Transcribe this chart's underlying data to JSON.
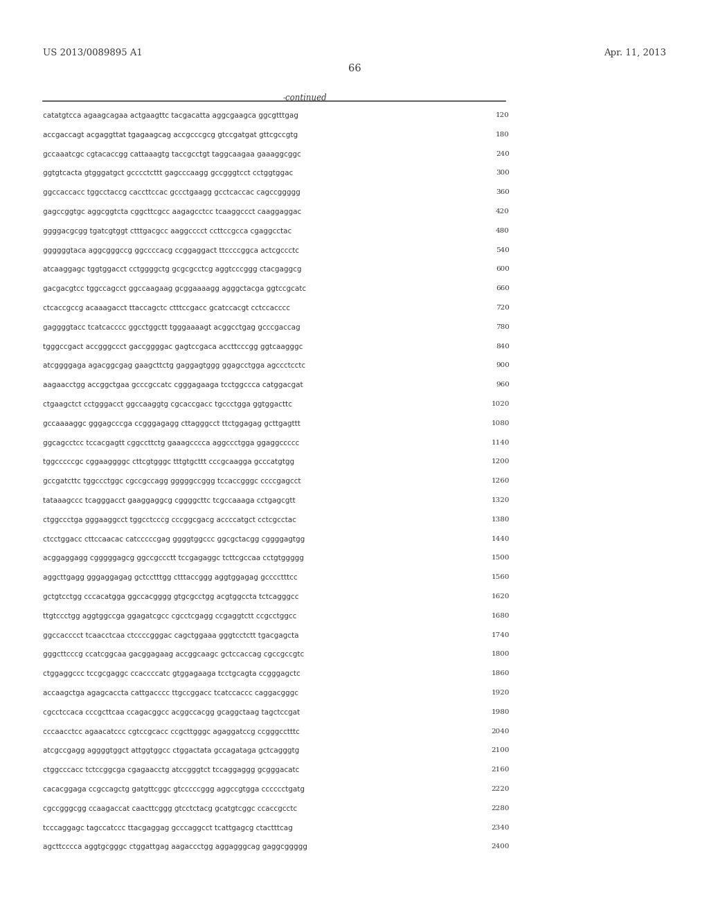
{
  "header_left": "US 2013/0089895 A1",
  "header_right": "Apr. 11, 2013",
  "page_number": "66",
  "continued_label": "-continued",
  "background_color": "#ffffff",
  "text_color": "#3a3a3a",
  "seq_font_size": 7.5,
  "header_font_size": 9.5,
  "page_num_font_size": 10.5,
  "continued_font_size": 8.5,
  "sequences": [
    {
      "seq": "catatgtcca agaagcagaa actgaagttc tacgacatta aggcgaagca ggcgtttgag",
      "num": "120"
    },
    {
      "seq": "accgaccagt acgaggttat tgagaagcag accgcccgcg gtccgatgat gttcgccgtg",
      "num": "180"
    },
    {
      "seq": "gccaaatcgc cgtacaccgg cattaaagtg taccgcctgt taggcaagaa gaaaggcggc",
      "num": "240"
    },
    {
      "seq": "ggtgtcacta gtgggatgct gcccctcttt gagcccaagg gccgggtcct cctggtggac",
      "num": "300"
    },
    {
      "seq": "ggccaccacc tggcctaccg caccttccac gccctgaagg gcctcaccac cagccggggg",
      "num": "360"
    },
    {
      "seq": "gagccggtgc aggcggtcta cggcttcgcc aagagcctcc tcaaggccct caaggaggac",
      "num": "420"
    },
    {
      "seq": "ggggacgcgg tgatcgtggt ctttgacgcc aaggcccct ccttccgcca cgaggcctac",
      "num": "480"
    },
    {
      "seq": "ggggggtaca aggcgggccg ggccccacg ccggaggact ttccccggca actcgccctc",
      "num": "540"
    },
    {
      "seq": "atcaaggagc tggtggacct cctggggctg gcgcgcctcg aggtcccggg ctacgaggcg",
      "num": "600"
    },
    {
      "seq": "gacgacgtcc tggccagcct ggccaagaag gcggaaaagg agggctacga ggtccgcatc",
      "num": "660"
    },
    {
      "seq": "ctcaccgccg acaaagacct ttaccagctc ctttccgacc gcatccacgt cctccacccc",
      "num": "720"
    },
    {
      "seq": "gaggggtacc tcatcacccc ggcctggctt tgggaaaagt acggcctgag gcccgaccag",
      "num": "780"
    },
    {
      "seq": "tgggccgact accgggccct gaccggggac gagtccgaca accttcccgg ggtcaagggc",
      "num": "840"
    },
    {
      "seq": "atcggggaga agacggcgag gaagcttctg gaggagtggg ggagcctgga agccctcctc",
      "num": "900"
    },
    {
      "seq": "aagaacctgg accggctgaa gcccgccatc cgggagaaga tcctggccca catggacgat",
      "num": "960"
    },
    {
      "seq": "ctgaagctct cctgggacct ggccaaggtg cgcaccgacc tgccctgga ggtggacttc",
      "num": "1020"
    },
    {
      "seq": "gccaaaaggc gggagcccga ccgggagagg cttagggcct ttctggagag gcttgagttt",
      "num": "1080"
    },
    {
      "seq": "ggcagcctcc tccacgagtt cggccttctg gaaagcccca aggccctgga ggaggccccc",
      "num": "1140"
    },
    {
      "seq": "tggcccccgc cggaaggggc cttcgtgggc tttgtgcttt cccgcaagga gcccatgtgg",
      "num": "1200"
    },
    {
      "seq": "gccgatcttc tggccctggc cgccgccagg gggggccggg tccaccgggc ccccgagcct",
      "num": "1260"
    },
    {
      "seq": "tataaagccc tcagggacct gaaggaggcg cggggcttc tcgccaaaga cctgagcgtt",
      "num": "1320"
    },
    {
      "seq": "ctggccctga gggaaggcct tggcctcccg cccggcgacg accccatgct cctcgcctac",
      "num": "1380"
    },
    {
      "seq": "ctcctggacc cttccaacac catcccccgag ggggtggccc ggcgctacgg cggggagtgg",
      "num": "1440"
    },
    {
      "seq": "acggaggagg cgggggagcg ggccgccctt tccgagaggc tcttcgccaa cctgtggggg",
      "num": "1500"
    },
    {
      "seq": "aggcttgagg gggaggagag gctcctttgg ctttaccggg aggtggagag gcccctttcc",
      "num": "1560"
    },
    {
      "seq": "gctgtcctgg cccacatgga ggccacgggg gtgcgcctgg acgtggccta tctcagggcc",
      "num": "1620"
    },
    {
      "seq": "ttgtccctgg aggtggccga ggagatcgcc cgcctcgagg ccgaggtctt ccgcctggcc",
      "num": "1680"
    },
    {
      "seq": "ggccacccct tcaacctcaa ctccccgggac cagctggaaa gggtcctctt tgacgagcta",
      "num": "1740"
    },
    {
      "seq": "gggcttcccg ccatcggcaa gacggagaag accggcaagc gctccaccag cgccgccgtc",
      "num": "1800"
    },
    {
      "seq": "ctggaggccc tccgcgaggc ccaccccatc gtggagaaga tcctgcagta ccgggagctc",
      "num": "1860"
    },
    {
      "seq": "accaagctga agagcaccta cattgacccc ttgccggacc tcatccaccc caggacgggc",
      "num": "1920"
    },
    {
      "seq": "cgcctccaca cccgcttcaa ccagacggcc acggccacgg gcaggctaag tagctccgat",
      "num": "1980"
    },
    {
      "seq": "cccaacctcc agaacatccc cgtccgcacc ccgcttgggc agaggatccg ccgggcctttc",
      "num": "2040"
    },
    {
      "seq": "atcgccgagg aggggtggct attggtggcc ctggactata gccagataga gctcagggtg",
      "num": "2100"
    },
    {
      "seq": "ctggcccacc tctccggcga cgagaacctg atccgggtct tccaggaggg gcgggacatc",
      "num": "2160"
    },
    {
      "seq": "cacacggaga ccgccagctg gatgttcggc gtcccccggg aggccgtgga cccccctgatg",
      "num": "2220"
    },
    {
      "seq": "cgccgggcgg ccaagaccat caacttcggg gtcctctacg gcatgtcggc ccaccgcctc",
      "num": "2280"
    },
    {
      "seq": "tcccaggagc tagccatccc ttacgaggag gcccaggcct tcattgagcg ctactttcag",
      "num": "2340"
    },
    {
      "seq": "agcttcccca aggtgcgggc ctggattgag aagaccctgg aggagggcag gaggcggggg",
      "num": "2400"
    }
  ]
}
